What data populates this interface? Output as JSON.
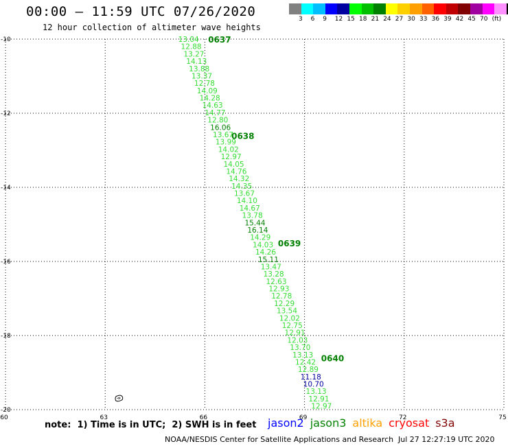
{
  "header": {
    "title": "00:00 – 11:59 UTC 07/26/2020",
    "subtitle": "12 hour collection of altimeter wave heights"
  },
  "color_legend": {
    "unit": "(ft)",
    "colors": [
      "#808080",
      "#00ffff",
      "#00bfff",
      "#0000ff",
      "#0000a0",
      "#00ff00",
      "#00c000",
      "#008000",
      "#ffff00",
      "#ffd000",
      "#ffa000",
      "#ff6000",
      "#ff0000",
      "#c00000",
      "#800000",
      "#a000a0",
      "#ff00ff",
      "#ff90ff",
      "#000000"
    ],
    "labels": [
      "3",
      "6",
      "9",
      "12",
      "15",
      "18",
      "21",
      "24",
      "27",
      "30",
      "33",
      "36",
      "39",
      "42",
      "45",
      "70"
    ]
  },
  "map": {
    "lon_ticks": [
      "60",
      "63",
      "66",
      "69",
      "72",
      "75"
    ],
    "lat_ticks": [
      "-10",
      "-12",
      "-14",
      "-16",
      "-18",
      "-20"
    ],
    "lon_range": [
      60,
      75
    ],
    "lat_range": [
      -20,
      -10
    ],
    "time_labels": [
      {
        "text": "0637",
        "lon": 66.1,
        "lat": -10.0
      },
      {
        "text": "0638",
        "lon": 66.8,
        "lat": -12.6
      },
      {
        "text": "0639",
        "lon": 68.2,
        "lat": -15.5
      },
      {
        "text": "0640",
        "lon": 69.5,
        "lat": -18.6
      }
    ],
    "track": {
      "start_lon": 65.2,
      "end_lon": 69.2,
      "start_lat": -10.0,
      "end_lat": -19.9,
      "values": [
        "13.04",
        "12.88",
        "13.27",
        "14.13",
        "13.88",
        "13.37",
        "12.78",
        "14.09",
        "14.28",
        "14.63",
        "14.77",
        "12.80",
        "16.06",
        "13.67",
        "13.99",
        "14.02",
        "12.97",
        "14.05",
        "14.76",
        "14.32",
        "14.35",
        "13.67",
        "14.10",
        "14.67",
        "13.78",
        "15.44",
        "16.14",
        "14.29",
        "14.03",
        "14.26",
        "15.11",
        "13.47",
        "13.28",
        "12.63",
        "12.93",
        "12.78",
        "12.29",
        "13.54",
        "12.02",
        "12.75",
        "12.91",
        "12.03",
        "13.70",
        "13.13",
        "12.42",
        "12.89",
        "11.18",
        "10.70",
        "13.13",
        "12.91",
        "12.97"
      ],
      "emph": {
        "12": "#008000",
        "25": "#008000",
        "26": "#008000",
        "30": "#008000",
        "46": "#0000a0",
        "47": "#0000a0"
      }
    },
    "island_lon": 63.4,
    "island_lat": -19.7
  },
  "footer": {
    "note": "note:  1) Time is in UTC;  2) SWH is in feet",
    "satellites": [
      {
        "name": "jason2",
        "color": "#0000ff"
      },
      {
        "name": "jason3",
        "color": "#008000"
      },
      {
        "name": "altika",
        "color": "#ffa000"
      },
      {
        "name": "cryosat",
        "color": "#ff0000"
      },
      {
        "name": "s3a",
        "color": "#800000"
      }
    ],
    "credit": "NOAA/NESDIS Center for Satellite Applications and Research",
    "timestamp": "Jul 27 12:27:19 UTC 2020"
  }
}
